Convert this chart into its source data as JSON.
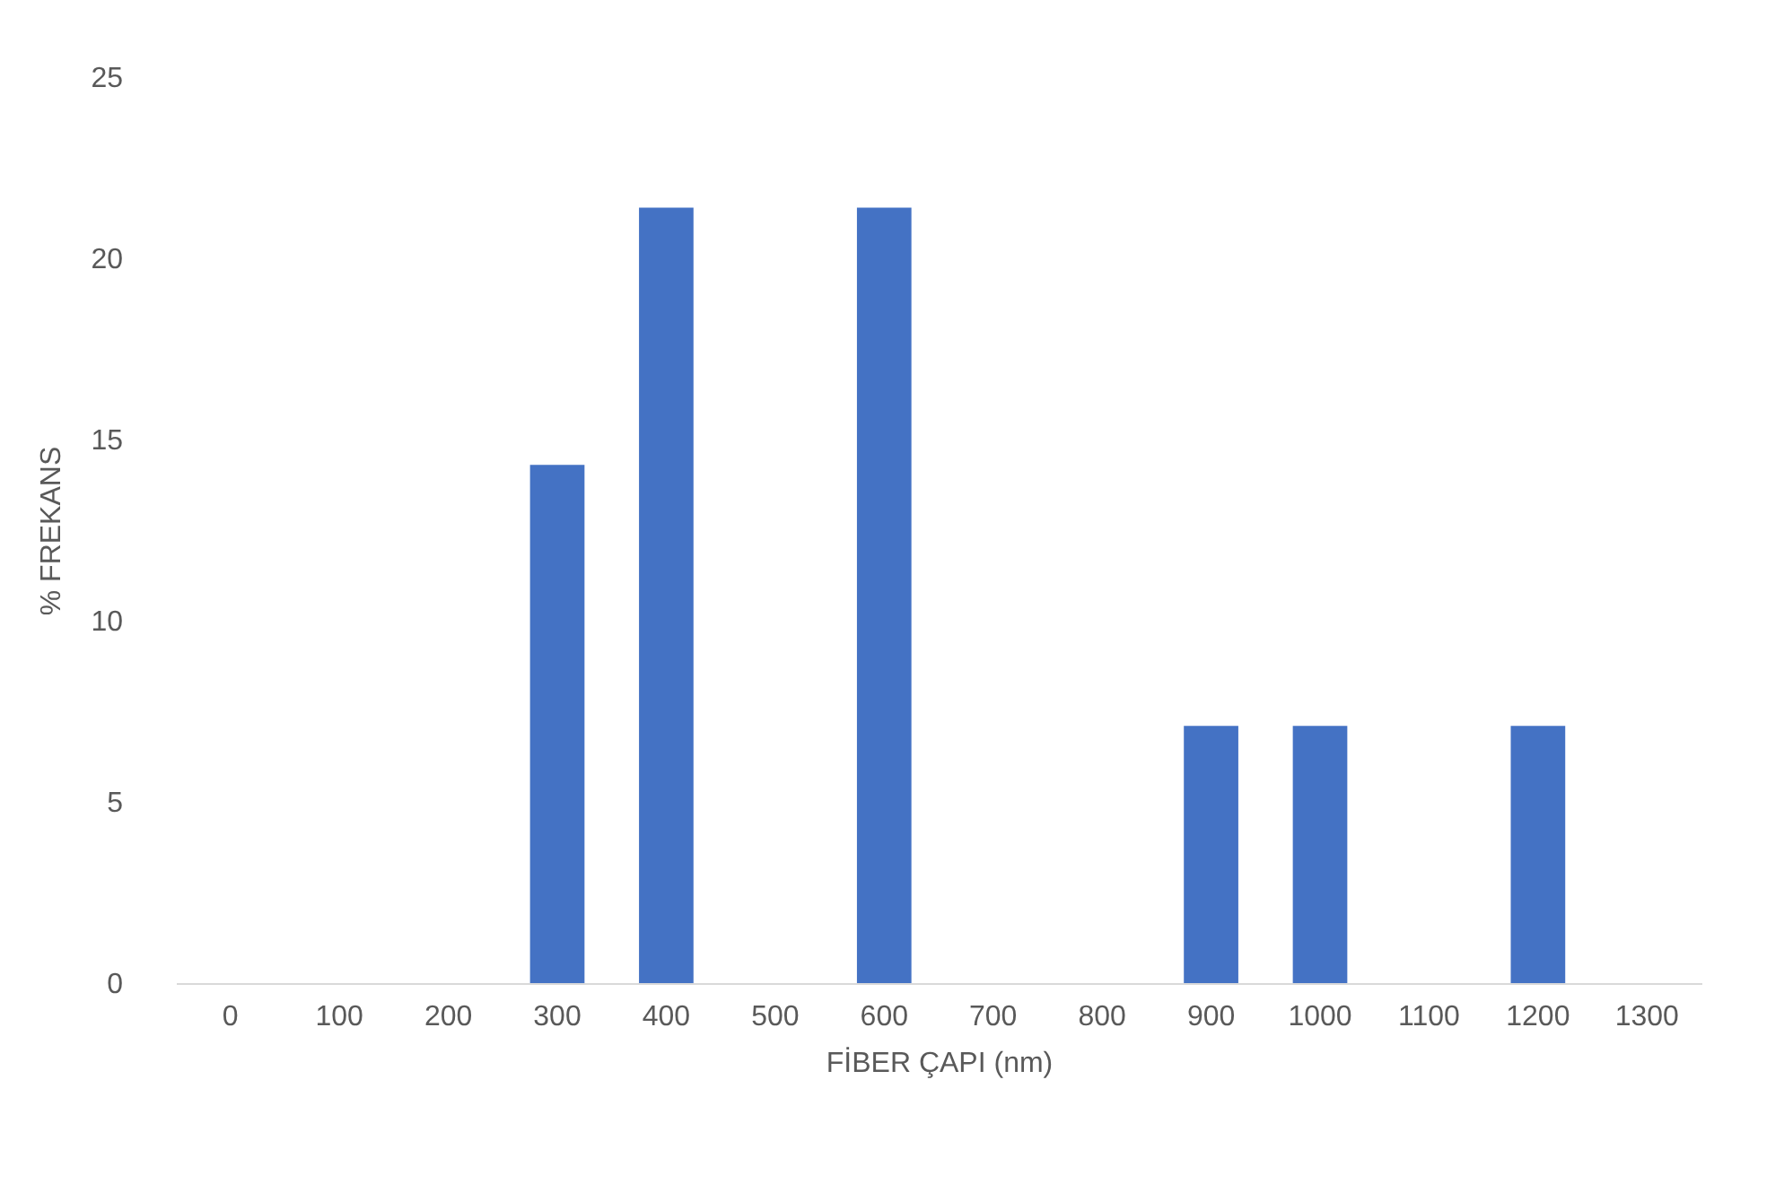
{
  "chart_data": {
    "type": "bar",
    "xlabel": "FİBER ÇAPI (nm)",
    "ylabel": "% FREKANS",
    "categories": [
      "0",
      "100",
      "200",
      "300",
      "400",
      "500",
      "600",
      "700",
      "800",
      "900",
      "1000",
      "1100",
      "1200",
      "1300"
    ],
    "values": [
      0,
      0,
      0,
      14.3,
      21.4,
      0,
      21.4,
      0,
      0,
      7.1,
      7.1,
      0,
      7.1,
      0
    ],
    "color": "#4472c4",
    "ylim": [
      0,
      25
    ],
    "yticks": [
      0,
      5,
      10,
      15,
      20,
      25
    ],
    "grid": false
  }
}
